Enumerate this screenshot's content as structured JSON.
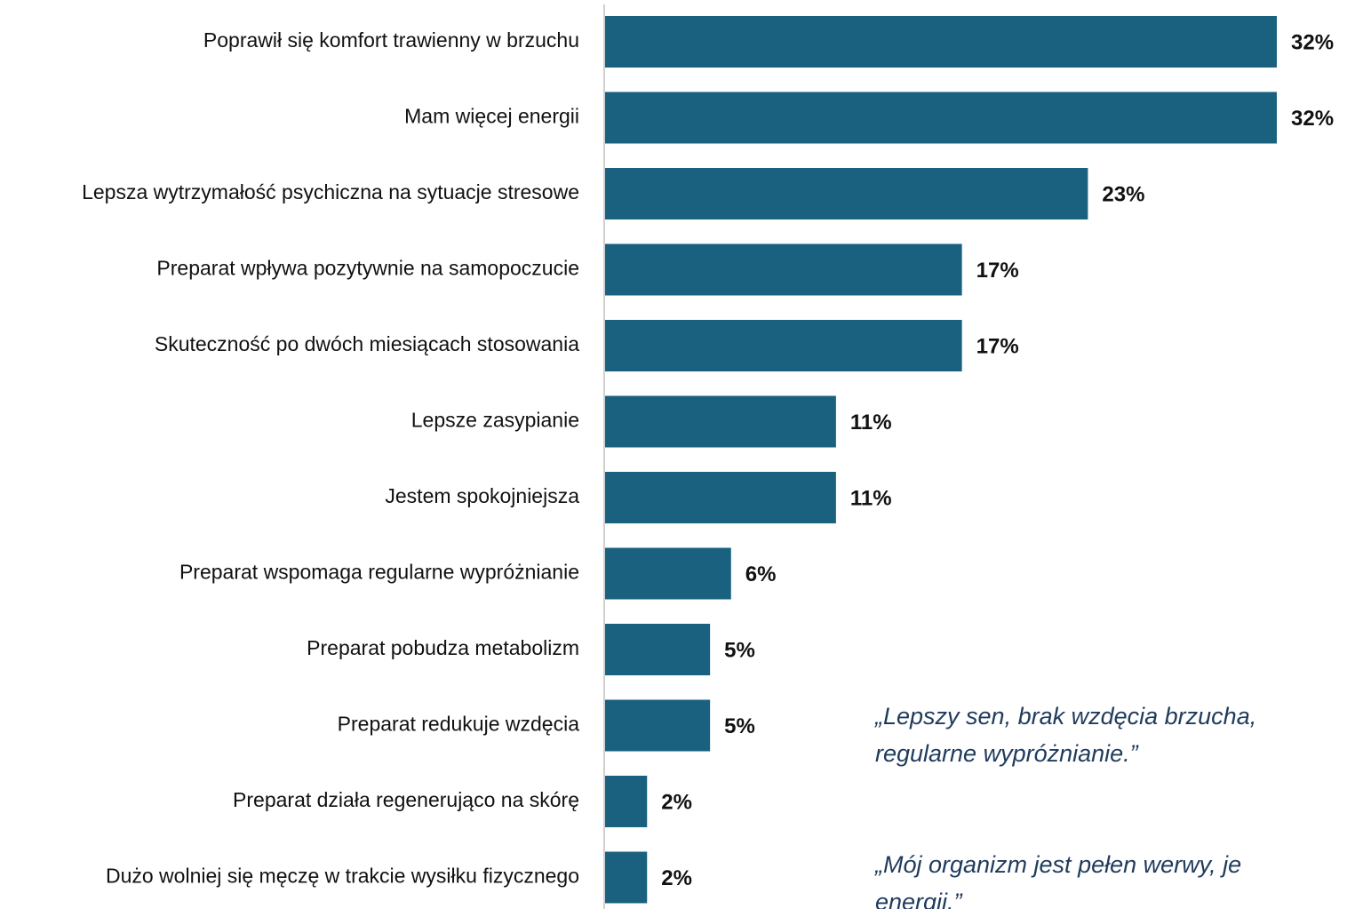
{
  "chart_data": {
    "type": "barh",
    "categories": [
      "Poprawił się komfort trawienny w brzuchu",
      "Mam więcej energii",
      "Lepsza wytrzymałość psychiczna na sytuacje stresowe",
      "Preparat wpływa pozytywnie na samopoczucie",
      "Skuteczność po dwóch miesiącach stosowania",
      "Lepsze zasypianie",
      "Jestem spokojniejsza",
      "Preparat wspomaga regularne wypróżnianie",
      "Preparat pobudza metabolizm",
      "Preparat redukuje wzdęcia",
      "Preparat działa regenerująco na skórę",
      "Dużo wolniej się męczę w trakcie wysiłku fizycznego"
    ],
    "values": [
      32,
      32,
      23,
      17,
      17,
      11,
      11,
      6,
      5,
      5,
      2,
      2
    ],
    "value_labels": [
      "32%",
      "32%",
      "23%",
      "17%",
      "17%",
      "11%",
      "11%",
      "6%",
      "5%",
      "5%",
      "2%",
      "2%"
    ],
    "color": "#19617f",
    "xlim": [
      0,
      32
    ],
    "annotations": [
      [
        "„Lepszy sen, brak wzdęcia brzucha,",
        "regularne wypróżnianie.”"
      ],
      [
        "„Mój organizm jest pełen werwy, je",
        "energii.”"
      ]
    ]
  }
}
